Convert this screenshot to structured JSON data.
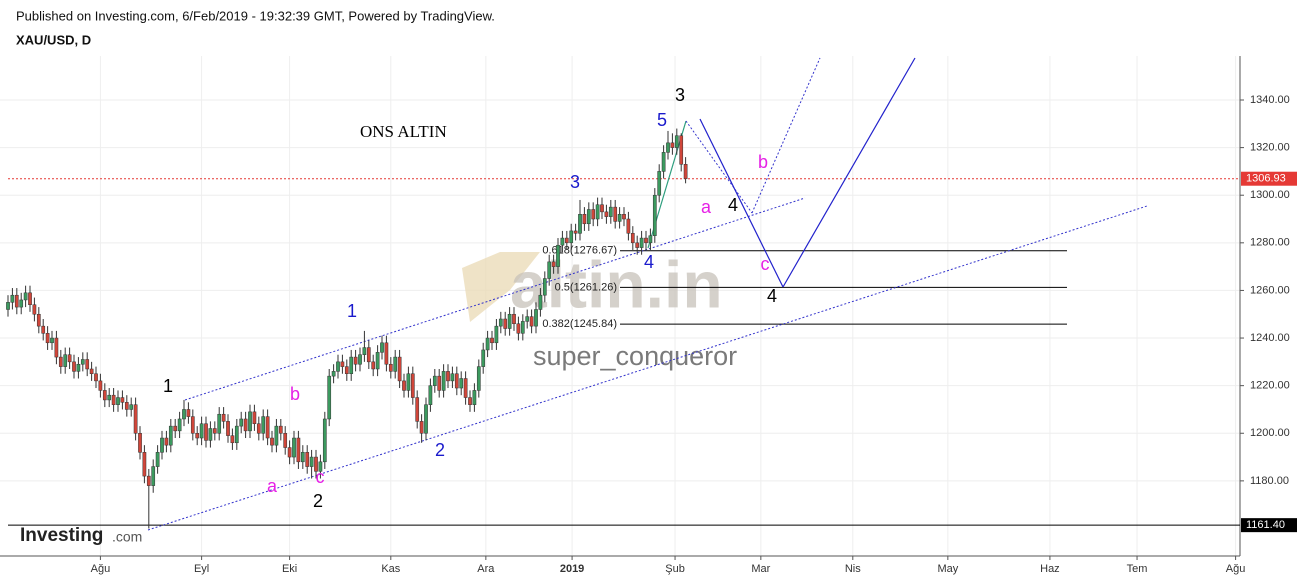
{
  "chart_data": {
    "type": "candlestick",
    "source": "Published on Investing.com, 6/Feb/2019 - 19:32:39 GMT, Powered by TradingView.",
    "title": "XAU/USD, D",
    "note": "ONS ALTIN",
    "watermark": "altin.in",
    "author": "super_conqueror",
    "logo": "Investing",
    "logo_suffix": ".com",
    "up_color": "#3c9a5f",
    "down_color": "#d0463a",
    "grid": true,
    "xlim": [
      -1.82,
      280
    ],
    "ylim": [
      1149.7,
      1356.8
    ],
    "xticks": [
      {
        "value": 21,
        "label": "Ağu"
      },
      {
        "value": 44,
        "label": "Eyl"
      },
      {
        "value": 64,
        "label": "Eki"
      },
      {
        "value": 87,
        "label": "Kas"
      },
      {
        "value": 108.6,
        "label": "Ara"
      },
      {
        "value": 128.2,
        "label": "2019"
      },
      {
        "value": 151.6,
        "label": "Şub"
      },
      {
        "value": 171.1,
        "label": "Mar"
      },
      {
        "value": 192,
        "label": "Nis"
      },
      {
        "value": 213.6,
        "label": "May"
      },
      {
        "value": 236.8,
        "label": "Haz"
      },
      {
        "value": 256.6,
        "label": "Tem"
      },
      {
        "value": 279,
        "label": "Ağu"
      }
    ],
    "yticks": [
      {
        "value": 1180,
        "label": "1180.00"
      },
      {
        "value": 1200,
        "label": "1200.00"
      },
      {
        "value": 1220,
        "label": "1220.00"
      },
      {
        "value": 1240,
        "label": "1240.00"
      },
      {
        "value": 1260,
        "label": "1260.00"
      },
      {
        "value": 1280,
        "label": "1280.00"
      },
      {
        "value": 1300,
        "label": "1300.00"
      },
      {
        "value": 1320,
        "label": "1320.00"
      },
      {
        "value": 1340,
        "label": "1340.00"
      }
    ],
    "open": [
      1252,
      1255,
      1258,
      1253,
      1256,
      1259,
      1254,
      1250,
      1245,
      1242,
      1238,
      1240,
      1232,
      1228,
      1233,
      1230,
      1226,
      1229,
      1231,
      1227,
      1225,
      1222,
      1218,
      1214,
      1216,
      1212,
      1215,
      1213,
      1210,
      1212,
      1200,
      1192,
      1182,
      1178,
      1186,
      1192,
      1198,
      1195,
      1203,
      1201,
      1206,
      1210,
      1207,
      1200,
      1198,
      1204,
      1197,
      1202,
      1200,
      1208,
      1205,
      1199,
      1196,
      1203,
      1206,
      1201,
      1209,
      1204,
      1200,
      1207,
      1198,
      1195,
      1203,
      1200,
      1194,
      1190,
      1198,
      1188,
      1192,
      1186,
      1190,
      1184,
      1188,
      1206,
      1224,
      1226,
      1230,
      1228,
      1225,
      1232,
      1229,
      1233,
      1236,
      1230,
      1227,
      1234,
      1238,
      1229,
      1226,
      1232,
      1222,
      1218,
      1225,
      1215,
      1205,
      1200,
      1212,
      1220,
      1224,
      1218,
      1226,
      1222,
      1225,
      1219,
      1223,
      1215,
      1212,
      1218,
      1228,
      1235,
      1240,
      1238,
      1245,
      1248,
      1244,
      1250,
      1246,
      1242,
      1247,
      1249,
      1245,
      1252,
      1258,
      1265,
      1272,
      1270,
      1279,
      1282,
      1280,
      1285,
      1284,
      1292,
      1288,
      1294,
      1290,
      1296,
      1293,
      1291,
      1295,
      1289,
      1292,
      1290,
      1284,
      1280,
      1278,
      1282,
      1280,
      1283,
      1300,
      1310,
      1318,
      1322,
      1320,
      1325,
      1313
    ],
    "high": [
      1258,
      1261,
      1261,
      1259,
      1262,
      1262,
      1257,
      1253,
      1248,
      1245,
      1243,
      1243,
      1235,
      1236,
      1236,
      1233,
      1232,
      1234,
      1234,
      1230,
      1228,
      1225,
      1221,
      1219,
      1219,
      1218,
      1218,
      1216,
      1215,
      1215,
      1203,
      1195,
      1185,
      1189,
      1195,
      1201,
      1201,
      1206,
      1206,
      1209,
      1214,
      1213,
      1210,
      1203,
      1207,
      1207,
      1205,
      1205,
      1211,
      1211,
      1208,
      1202,
      1206,
      1209,
      1209,
      1212,
      1212,
      1207,
      1210,
      1210,
      1201,
      1206,
      1206,
      1203,
      1197,
      1201,
      1201,
      1195,
      1195,
      1193,
      1193,
      1191,
      1209,
      1227,
      1229,
      1233,
      1233,
      1231,
      1235,
      1235,
      1236,
      1243,
      1239,
      1233,
      1237,
      1241,
      1241,
      1232,
      1235,
      1235,
      1225,
      1228,
      1228,
      1218,
      1208,
      1215,
      1223,
      1227,
      1227,
      1229,
      1229,
      1228,
      1228,
      1226,
      1226,
      1218,
      1221,
      1231,
      1238,
      1243,
      1243,
      1248,
      1251,
      1251,
      1253,
      1253,
      1249,
      1250,
      1252,
      1252,
      1255,
      1261,
      1268,
      1275,
      1275,
      1282,
      1285,
      1285,
      1288,
      1288,
      1298,
      1295,
      1297,
      1297,
      1299,
      1299,
      1296,
      1298,
      1298,
      1295,
      1295,
      1293,
      1287,
      1283,
      1285,
      1285,
      1286,
      1303,
      1313,
      1321,
      1327,
      1326,
      1328,
      1326,
      1316
    ],
    "low": [
      1249,
      1252,
      1250,
      1250,
      1253,
      1251,
      1247,
      1242,
      1239,
      1235,
      1235,
      1229,
      1225,
      1225,
      1227,
      1223,
      1223,
      1226,
      1224,
      1222,
      1219,
      1215,
      1211,
      1211,
      1209,
      1209,
      1210,
      1207,
      1207,
      1197,
      1189,
      1179,
      1160,
      1175,
      1183,
      1189,
      1192,
      1192,
      1198,
      1198,
      1203,
      1204,
      1197,
      1195,
      1195,
      1194,
      1194,
      1197,
      1197,
      1202,
      1196,
      1193,
      1193,
      1200,
      1198,
      1198,
      1201,
      1197,
      1197,
      1195,
      1192,
      1192,
      1197,
      1191,
      1187,
      1187,
      1185,
      1185,
      1183,
      1181,
      1181,
      1181,
      1185,
      1203,
      1221,
      1223,
      1225,
      1222,
      1222,
      1226,
      1226,
      1230,
      1227,
      1224,
      1224,
      1231,
      1226,
      1223,
      1223,
      1219,
      1215,
      1215,
      1212,
      1202,
      1196,
      1197,
      1209,
      1217,
      1215,
      1215,
      1219,
      1219,
      1216,
      1216,
      1212,
      1209,
      1209,
      1215,
      1225,
      1232,
      1235,
      1235,
      1242,
      1241,
      1241,
      1243,
      1239,
      1239,
      1244,
      1242,
      1242,
      1249,
      1255,
      1262,
      1267,
      1267,
      1276,
      1277,
      1277,
      1281,
      1281,
      1285,
      1285,
      1287,
      1287,
      1290,
      1288,
      1288,
      1286,
      1286,
      1287,
      1281,
      1277,
      1275,
      1275,
      1277,
      1277,
      1280,
      1297,
      1307,
      1315,
      1317,
      1317,
      1310,
      1305
    ],
    "close": [
      1255,
      1258,
      1253,
      1256,
      1259,
      1254,
      1250,
      1245,
      1242,
      1238,
      1240,
      1232,
      1228,
      1233,
      1230,
      1226,
      1229,
      1231,
      1227,
      1225,
      1222,
      1218,
      1214,
      1216,
      1212,
      1215,
      1213,
      1210,
      1212,
      1200,
      1192,
      1182,
      1178,
      1186,
      1192,
      1198,
      1195,
      1203,
      1201,
      1206,
      1210,
      1207,
      1200,
      1198,
      1204,
      1197,
      1202,
      1200,
      1208,
      1205,
      1199,
      1196,
      1203,
      1206,
      1201,
      1209,
      1204,
      1200,
      1207,
      1198,
      1195,
      1203,
      1200,
      1194,
      1190,
      1198,
      1188,
      1192,
      1186,
      1190,
      1184,
      1188,
      1206,
      1224,
      1226,
      1230,
      1228,
      1225,
      1232,
      1229,
      1233,
      1236,
      1230,
      1227,
      1234,
      1238,
      1229,
      1226,
      1232,
      1222,
      1218,
      1225,
      1215,
      1205,
      1200,
      1212,
      1220,
      1224,
      1218,
      1226,
      1222,
      1225,
      1219,
      1223,
      1215,
      1212,
      1218,
      1228,
      1235,
      1240,
      1238,
      1245,
      1248,
      1244,
      1250,
      1246,
      1242,
      1247,
      1249,
      1245,
      1252,
      1258,
      1265,
      1272,
      1270,
      1279,
      1282,
      1280,
      1285,
      1284,
      1292,
      1288,
      1294,
      1290,
      1296,
      1293,
      1291,
      1295,
      1289,
      1292,
      1290,
      1284,
      1280,
      1278,
      1282,
      1280,
      1283,
      1300,
      1310,
      1318,
      1322,
      1320,
      1325,
      1313,
      1306.93
    ],
    "price_line": {
      "value": 1306.93,
      "color": "#e53935"
    },
    "low_line": {
      "value": 1161.4,
      "label": "1161.40",
      "color": "#000000"
    },
    "fib_levels": [
      {
        "value": 1276.67,
        "label": "0.618(1276.67)"
      },
      {
        "value": 1261.26,
        "label": "0.5(1261.26)"
      },
      {
        "value": 1245.84,
        "label": "0.382(1245.84)"
      }
    ],
    "annotations": [
      {
        "text": "1",
        "color": "#000000"
      },
      {
        "text": "a",
        "color": "#e620e6"
      },
      {
        "text": "b",
        "color": "#e620e6"
      },
      {
        "text": "c",
        "color": "#e620e6"
      },
      {
        "text": "2",
        "color": "#000000"
      },
      {
        "text": "1",
        "color": "#1a1acc"
      },
      {
        "text": "2",
        "color": "#1a1acc"
      },
      {
        "text": "3",
        "color": "#1a1acc"
      },
      {
        "text": "4",
        "color": "#1a1acc"
      },
      {
        "text": "5",
        "color": "#1a1acc"
      },
      {
        "text": "3",
        "color": "#000000"
      },
      {
        "text": "a",
        "color": "#e620e6"
      },
      {
        "text": "4",
        "color": "#000000"
      },
      {
        "text": "b",
        "color": "#e620e6"
      },
      {
        "text": "c",
        "color": "#e620e6"
      },
      {
        "text": "4",
        "color": "#000000"
      }
    ]
  }
}
